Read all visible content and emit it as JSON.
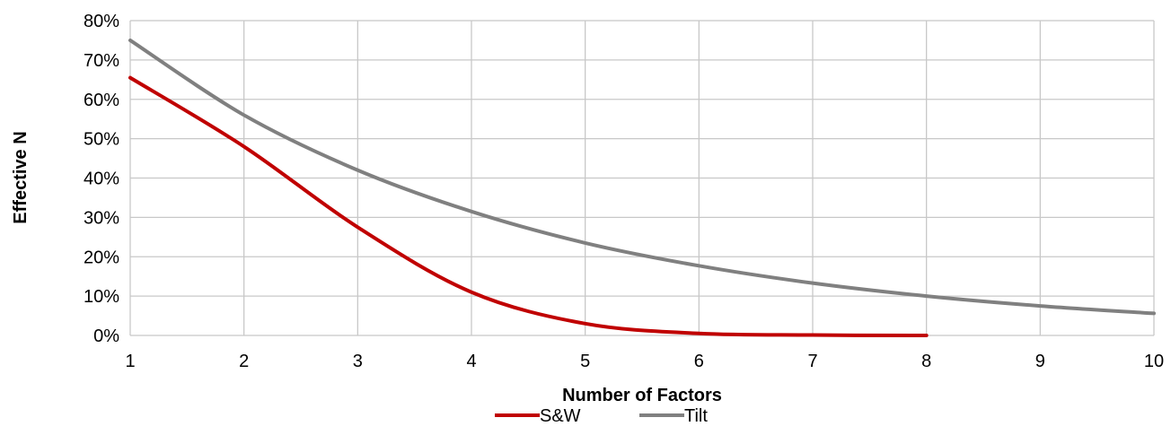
{
  "chart_data": {
    "type": "line",
    "title": "",
    "xlabel": "Number of Factors",
    "ylabel": "Effective N",
    "xlim": [
      1,
      10
    ],
    "ylim": [
      0,
      0.8
    ],
    "x_ticks": [
      "1",
      "2",
      "3",
      "4",
      "5",
      "6",
      "7",
      "8",
      "9",
      "10"
    ],
    "y_ticks": [
      "0%",
      "10%",
      "20%",
      "30%",
      "40%",
      "50%",
      "60%",
      "70%",
      "80%"
    ],
    "grid": true,
    "legend_position": "bottom",
    "series": [
      {
        "name": "S&W",
        "color": "#C00000",
        "x": [
          1,
          2,
          3,
          4,
          5,
          6,
          7,
          8
        ],
        "y": [
          0.655,
          0.48,
          0.275,
          0.11,
          0.03,
          0.005,
          0.001,
          0.0
        ]
      },
      {
        "name": "Tilt",
        "color": "#808080",
        "x": [
          1,
          2,
          3,
          4,
          5,
          6,
          7,
          8,
          9,
          10
        ],
        "y": [
          0.75,
          0.56,
          0.42,
          0.315,
          0.235,
          0.177,
          0.133,
          0.1,
          0.075,
          0.056
        ]
      }
    ]
  }
}
